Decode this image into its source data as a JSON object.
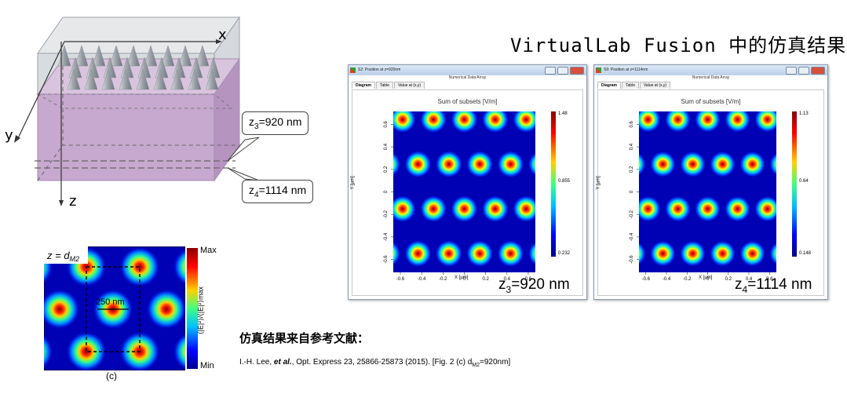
{
  "title": "VirtualLab Fusion 中的仿真结果",
  "schematic": {
    "x_label": "x",
    "y_label": "y",
    "z_label": "z",
    "bubble_z3": "z3=920nm",
    "bubble_z4": "z4=1114nm",
    "bubble_z3_parts": {
      "var": "z",
      "sub": "3",
      "val": "=920 nm"
    },
    "bubble_z4_parts": {
      "var": "z",
      "sub": "4",
      "val": "=1114 nm"
    }
  },
  "reference_plot": {
    "corner_label": "z = dM2",
    "scale_text": "250 nm",
    "cbar_max": "Max",
    "cbar_min": "Min",
    "cbar_label": "⟨|E|²⟩/⟨|E|²⟩max",
    "caption": "(c)"
  },
  "windows": [
    {
      "title": "S2: Position at z=920nm",
      "subtitle": "Numerical Data Array",
      "tabs": [
        "Diagram",
        "Table",
        "Value at (x,y)"
      ],
      "plot_title": "Sum of subsets  [V/m]",
      "xlabel": "X [µm]",
      "ylabel": "Y [µm]",
      "xticks": [
        "-0.6",
        "-0.4",
        "-0.2",
        "0",
        "0.2",
        "0.4",
        "0.6"
      ],
      "yticks": [
        "0.6",
        "0.4",
        "0.2",
        "0",
        "-0.2",
        "-0.4",
        "-0.6"
      ],
      "cbar_max": "1.48",
      "cbar_mid": "0.855",
      "cbar_min": "0.232",
      "big_var": "z",
      "big_sub": "3",
      "big_val": "=920 nm"
    },
    {
      "title": "S9: Position at z=1114nm",
      "subtitle": "Numerical Data Array",
      "tabs": [
        "Diagram",
        "Table",
        "Value at (x,y)"
      ],
      "plot_title": "Sum of subsets  [V/m]",
      "xlabel": "X [µm]",
      "ylabel": "Y [µm]",
      "xticks": [
        "-0.6",
        "-0.4",
        "-0.2",
        "0",
        "0.2",
        "0.4",
        "0.6"
      ],
      "yticks": [
        "0.6",
        "0.4",
        "0.2",
        "0",
        "-0.2",
        "-0.4",
        "-0.6"
      ],
      "cbar_max": "1.13",
      "cbar_mid": "0.64",
      "cbar_min": "0.148",
      "big_var": "z",
      "big_sub": "4",
      "big_val": "=1114 nm"
    }
  ],
  "reference": {
    "heading": "仿真结果来自参考文献：",
    "authors": "I.-H. Lee, ",
    "etal": "et al.",
    "rest": ", Opt. Express 23, 25866-25873 (2015). [Fig. 2 (c) d",
    "sub": "M2",
    "tail": "=920nm]"
  },
  "colors": {
    "jet_bg": "#0000b4",
    "prism_top": "#cfd3d8",
    "prism_purple": "#c7a8cf",
    "cone": "#a7acb2"
  }
}
